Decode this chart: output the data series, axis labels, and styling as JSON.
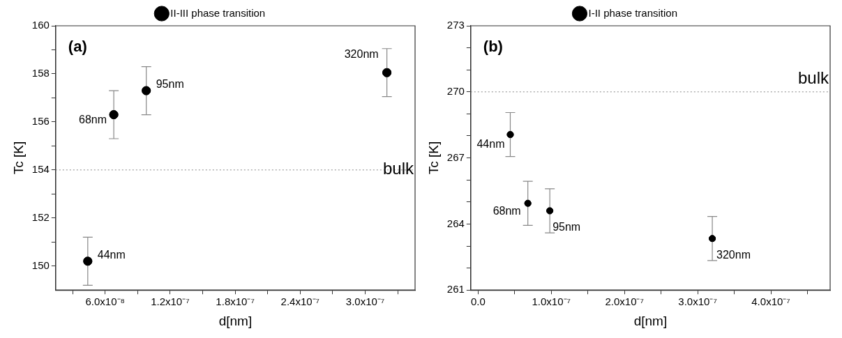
{
  "chart_data": [
    {
      "type": "scatter",
      "xlabel": "d[nm]",
      "ylabel": "Tc [K]",
      "legend": "top",
      "marker": "circle",
      "grid": false,
      "series": [
        {
          "name": "II-III phase transition",
          "color": "#000000",
          "x": [
            4.4e-08,
            6.8e-08,
            9.8e-08,
            3.2e-07
          ],
          "values": [
            150.2,
            156.3,
            157.3,
            158.05
          ],
          "errors": [
            1,
            1,
            1,
            1
          ]
        }
      ],
      "xlim": [
        1.44e-08,
        3.46e-07
      ],
      "xticks": [
        {
          "value": 3e-08,
          "label": null
        },
        {
          "value": 6e-08,
          "label": "6.0x10⁻⁸"
        },
        {
          "value": 9e-08,
          "label": null
        },
        {
          "value": 1.2e-07,
          "label": "1.2x10⁻⁷"
        },
        {
          "value": 1.5e-07,
          "label": null
        },
        {
          "value": 1.8e-07,
          "label": "1.8x10⁻⁷"
        },
        {
          "value": 2.1e-07,
          "label": null
        },
        {
          "value": 2.4e-07,
          "label": "2.4x10⁻⁷"
        },
        {
          "value": 2.7e-07,
          "label": null
        },
        {
          "value": 3e-07,
          "label": "3.0x10⁻⁷"
        },
        {
          "value": 3.3e-07,
          "label": null
        }
      ],
      "ylim": [
        149,
        160
      ],
      "yticks": [
        150,
        {
          "value": 151,
          "label": null
        },
        152,
        {
          "value": 153,
          "label": null
        },
        154,
        {
          "value": 155,
          "label": null
        },
        156,
        {
          "value": 157,
          "label": null
        },
        158,
        {
          "value": 159,
          "label": null
        },
        160
      ],
      "ref_lines": [
        {
          "axis": "y",
          "value": 154,
          "label": "bulk",
          "color": "#888888",
          "line_style": "dotted"
        }
      ],
      "annotations": [
        "(a)",
        {
          "text": "44nm",
          "x": 4.4e-08,
          "y": 150.2
        },
        {
          "text": "68nm",
          "x": 6.8e-08,
          "y": 156.3
        },
        {
          "text": "95nm",
          "x": 9.8e-08,
          "y": 157.3
        },
        {
          "text": "320nm",
          "x": 3.2e-07,
          "y": 158.05
        }
      ]
    },
    {
      "type": "scatter",
      "xlabel": "d[nm]",
      "ylabel": "Tc [K]",
      "legend": "top",
      "marker": "circle",
      "grid": false,
      "series": [
        {
          "name": "I-II phase transition",
          "color": "#000000",
          "x": [
            4.4e-08,
            6.8e-08,
            9.8e-08,
            3.2e-07
          ],
          "values": [
            268.06,
            264.94,
            264.6,
            263.34
          ],
          "errors": [
            1,
            1,
            1,
            1
          ]
        }
      ],
      "xlim": [
        -1e-08,
        4.81e-07
      ],
      "xticks": [
        {
          "value": 0,
          "label": "0.0"
        },
        {
          "value": 5e-08,
          "label": null
        },
        {
          "value": 1e-07,
          "label": "1.0x10⁻⁷"
        },
        {
          "value": 1.5e-07,
          "label": null
        },
        {
          "value": 2e-07,
          "label": "2.0x10⁻⁷"
        },
        {
          "value": 2.5e-07,
          "label": null
        },
        {
          "value": 3e-07,
          "label": "3.0x10⁻⁷"
        },
        {
          "value": 3.5e-07,
          "label": null
        },
        {
          "value": 4e-07,
          "label": "4.0x10⁻⁷"
        },
        {
          "value": 4.5e-07,
          "label": null
        }
      ],
      "ylim": [
        261,
        273
      ],
      "yticks": [
        261,
        {
          "value": 262,
          "label": null
        },
        {
          "value": 263,
          "label": null
        },
        264,
        {
          "value": 265,
          "label": null
        },
        {
          "value": 266,
          "label": null
        },
        267,
        {
          "value": 268,
          "label": null
        },
        {
          "value": 269,
          "label": null
        },
        270,
        {
          "value": 271,
          "label": null
        },
        {
          "value": 272,
          "label": null
        },
        273
      ],
      "ref_lines": [
        {
          "axis": "y",
          "value": 270,
          "label": "bulk",
          "color": "#888888",
          "line_style": "dotted"
        }
      ],
      "annotations": [
        "(b)",
        {
          "text": "44nm",
          "x": 4.4e-08,
          "y": 268.06
        },
        {
          "text": "68nm",
          "x": 6.8e-08,
          "y": 264.94
        },
        {
          "text": "95nm",
          "x": 9.8e-08,
          "y": 264.6
        },
        {
          "text": "320nm",
          "x": 3.2e-07,
          "y": 263.34
        }
      ]
    }
  ]
}
